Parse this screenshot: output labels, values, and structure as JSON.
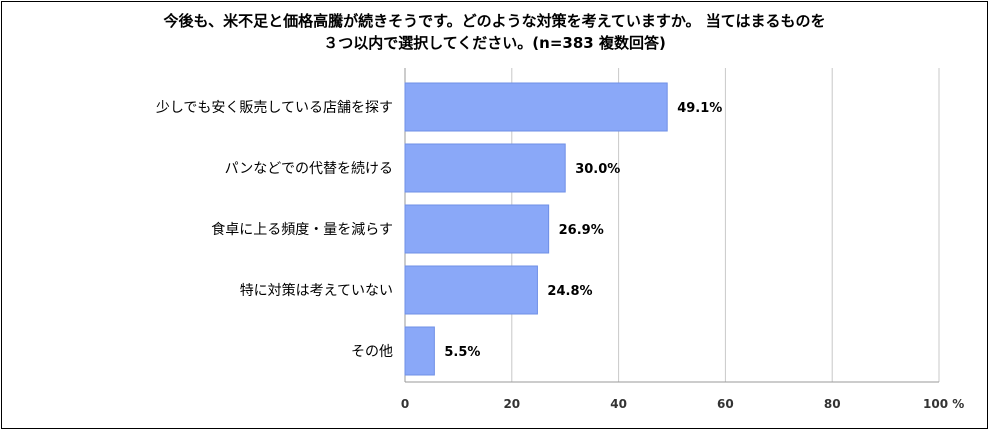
{
  "chart_data": {
    "type": "bar",
    "orientation": "horizontal",
    "title_lines": [
      "今後も、米不足と価格高騰が続きそうです。どのような対策を考えていますか。 当てはまるものを",
      "３つ以内で選択してください。(n=383 複数回答)"
    ],
    "categories": [
      "少しでも安く販売している店舗を探す",
      "パンなどでの代替を続ける",
      "食卓に上る頻度・量を減らす",
      "特に対策は考えていない",
      "その他"
    ],
    "values": [
      49.1,
      30.0,
      26.9,
      24.8,
      5.5
    ],
    "value_labels": [
      "49.1%",
      "30.0%",
      "26.9%",
      "24.8%",
      "5.5%"
    ],
    "x_ticks": [
      "0",
      "20",
      "40",
      "60",
      "80",
      "100 %"
    ],
    "xlim": [
      0,
      100
    ],
    "grid": true,
    "bar_color": "#8aa8f8",
    "bar_edge_color": "#6f8fe6",
    "grid_color": "#c8c8c8"
  }
}
